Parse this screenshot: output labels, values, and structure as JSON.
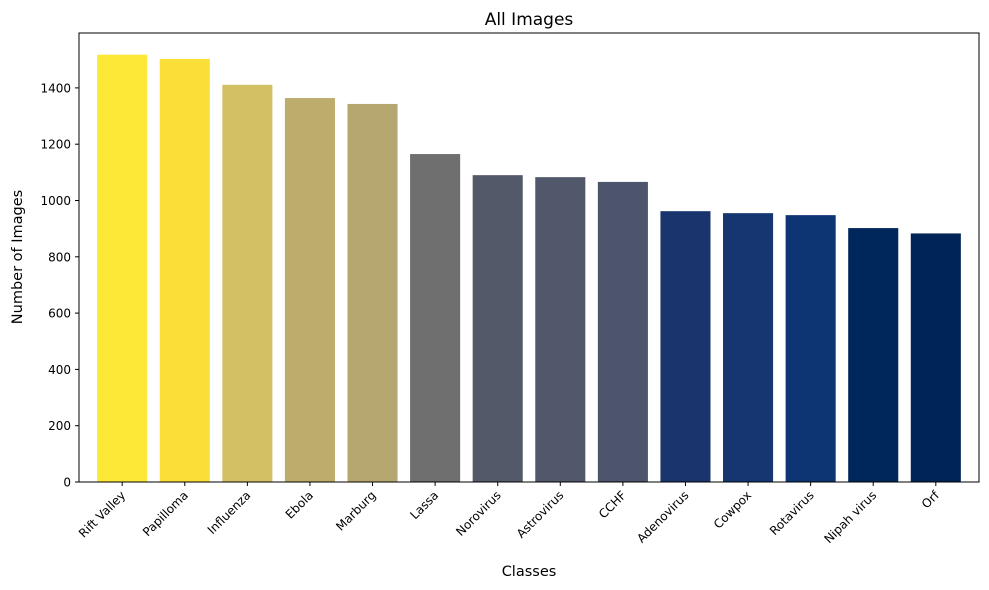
{
  "chart_data": {
    "type": "bar",
    "title": "All Images",
    "xlabel": "Classes",
    "ylabel": "Number of Images",
    "categories": [
      "Rift Valley",
      "Papilloma",
      "Influenza",
      "Ebola",
      "Marburg",
      "Lassa",
      "Norovirus",
      "Astrovirus",
      "CCHF",
      "Adenovirus",
      "Cowpox",
      "Rotavirus",
      "Nipah virus",
      "Orf"
    ],
    "values": [
      1518,
      1503,
      1411,
      1364,
      1343,
      1165,
      1090,
      1083,
      1066,
      962,
      955,
      948,
      902,
      883
    ],
    "colors": [
      "#fde737",
      "#fbdf38",
      "#d3c064",
      "#beac6d",
      "#b6a771",
      "#6f6f6f",
      "#545969",
      "#52586b",
      "#4d556d",
      "#1a356e",
      "#153671",
      "#0d3574",
      "#00275b",
      "#002456"
    ],
    "ylim": [
      0,
      1595
    ],
    "yticks": [
      0,
      200,
      400,
      600,
      800,
      1000,
      1200,
      1400
    ],
    "grid": false,
    "legend": "none"
  }
}
